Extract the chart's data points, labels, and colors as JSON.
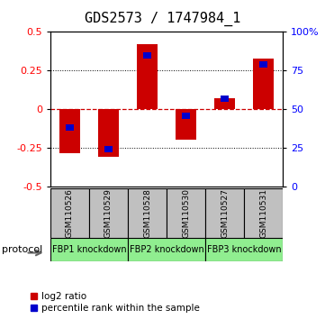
{
  "title": "GDS2573 / 1747984_1",
  "samples": [
    "GSM110526",
    "GSM110529",
    "GSM110528",
    "GSM110530",
    "GSM110527",
    "GSM110531"
  ],
  "log2_ratio": [
    -0.285,
    -0.305,
    0.42,
    -0.195,
    0.07,
    0.33
  ],
  "percentile_rank": [
    38,
    24,
    85,
    46,
    57,
    79
  ],
  "protocol_groups": [
    {
      "label": "FBP1 knockdown",
      "start": 0,
      "end": 1
    },
    {
      "label": "FBP2 knockdown",
      "start": 2,
      "end": 3
    },
    {
      "label": "FBP3 knockdown",
      "start": 4,
      "end": 5
    }
  ],
  "bar_color_red": "#CC0000",
  "bar_color_blue": "#0000CC",
  "ylim_left": [
    -0.5,
    0.5
  ],
  "ylim_right": [
    0,
    100
  ],
  "yticks_left": [
    -0.5,
    -0.25,
    0.0,
    0.25,
    0.5
  ],
  "yticks_left_labels": [
    "-0.5",
    "-0.25",
    "0",
    "0.25",
    "0.5"
  ],
  "yticks_right": [
    0,
    25,
    50,
    75,
    100
  ],
  "yticks_right_labels": [
    "0",
    "25",
    "50",
    "75",
    "100%"
  ],
  "hline_color": "#CC0000",
  "grid_color": "black",
  "sample_box_color": "#C0C0C0",
  "proto_box_color": "#90EE90",
  "bg_color": "white",
  "title_fontsize": 11,
  "axis_fontsize": 8,
  "legend_fontsize": 7.5,
  "bar_width": 0.55,
  "blue_bar_width": 0.22,
  "blue_bar_height": 0.04,
  "protocol_label": "protocol"
}
